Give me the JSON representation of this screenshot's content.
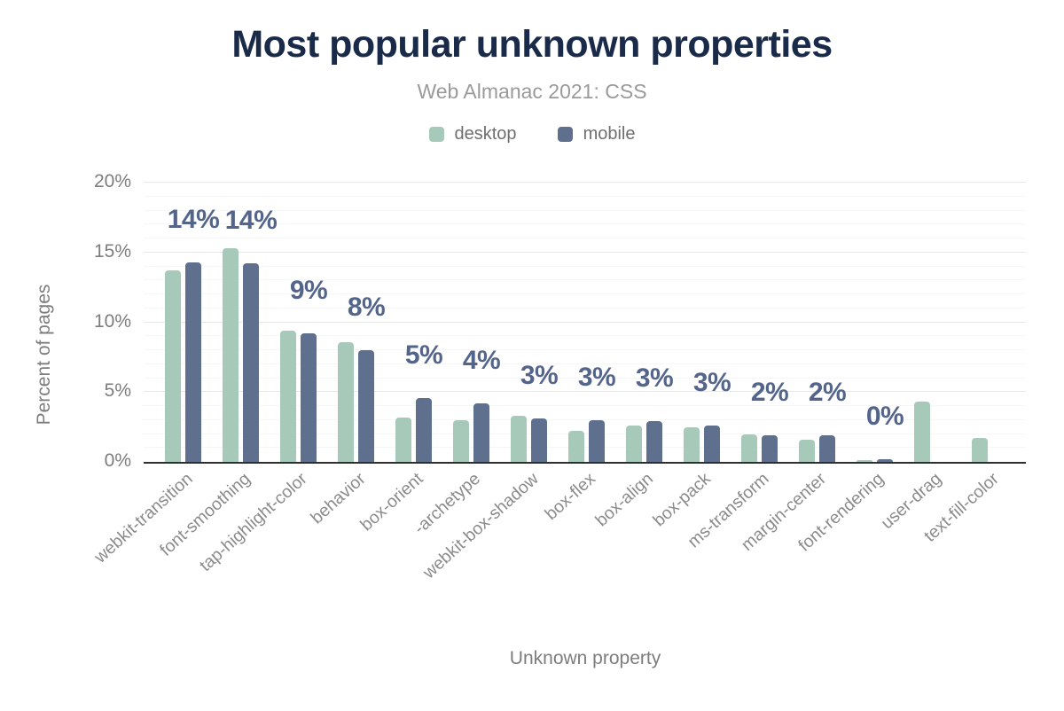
{
  "header": {
    "title": "Most popular unknown properties",
    "subtitle": "Web Almanac 2021: CSS"
  },
  "chart_data": {
    "type": "bar",
    "title": "Most popular unknown properties",
    "subtitle": "Web Almanac 2021: CSS",
    "xlabel": "Unknown property",
    "ylabel": "Percent of pages",
    "ylim": [
      0,
      20
    ],
    "yticks": [
      "0%",
      "5%",
      "10%",
      "15%",
      "20%"
    ],
    "grid": true,
    "legend_position": "top",
    "categories": [
      "webkit-transition",
      "font-smoothing",
      "tap-highlight-color",
      "behavior",
      "box-orient",
      "-archetype",
      "webkit-box-shadow",
      "box-flex",
      "box-align",
      "box-pack",
      "ms-transform",
      "margin-center",
      "font-rendering",
      "user-drag",
      "text-fill-color"
    ],
    "series": [
      {
        "name": "desktop",
        "color": "#a7c9ba",
        "values": [
          13.7,
          15.3,
          9.4,
          8.6,
          3.2,
          3.0,
          3.3,
          2.2,
          2.6,
          2.5,
          2.0,
          1.6,
          0.1,
          4.3,
          1.7
        ]
      },
      {
        "name": "mobile",
        "color": "#5e708e",
        "values": [
          14.3,
          14.2,
          9.2,
          8.0,
          4.6,
          4.2,
          3.1,
          3.0,
          2.9,
          2.6,
          1.9,
          1.9,
          0.2,
          0.0,
          0.0
        ]
      }
    ],
    "bar_labels": [
      "14%",
      "14%",
      "9%",
      "8%",
      "5%",
      "4%",
      "3%",
      "3%",
      "3%",
      "3%",
      "2%",
      "2%",
      "0%",
      "",
      ""
    ]
  },
  "style": {
    "background": "#ffffff",
    "title_color": "#1a2b4a",
    "subtitle_color": "#9a9a9a",
    "legend_color": "#6f6f6f",
    "tick_color": "#7d7d7d",
    "category_color": "#8b8b8b",
    "label_color": "#54658c",
    "grid_major": "#e8e8e8",
    "grid_minor": "#f6f6f6",
    "axis_color": "#2f2f2f"
  }
}
